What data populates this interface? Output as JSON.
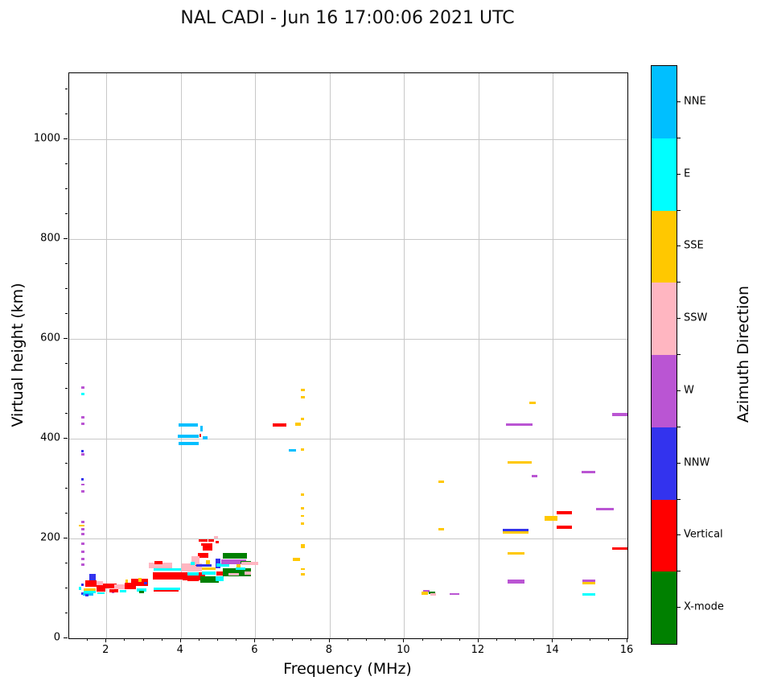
{
  "title": "NAL CADI - Jun 16 17:00:06 2021 UTC",
  "chart_data": {
    "type": "scatter",
    "title": "NAL CADI - Jun 16 17:00:06 2021 UTC",
    "xlabel": "Frequency (MHz)",
    "ylabel": "Virtual height (km)",
    "xlim": [
      1,
      16
    ],
    "ylim": [
      0,
      1132
    ],
    "x_major_ticks": [
      2,
      4,
      6,
      8,
      10,
      12,
      14,
      16
    ],
    "x_minor_step": 0.5,
    "y_major_ticks": [
      0,
      200,
      400,
      600,
      800,
      1000
    ],
    "y_minor_step": 50,
    "grid": true,
    "grid_color": "#c8c8c8",
    "colorbar": {
      "label": "Azimuth Direction",
      "categories": [
        {
          "label": "NNE",
          "color": "#00BFFF"
        },
        {
          "label": "E",
          "color": "#00FFFF"
        },
        {
          "label": "SSE",
          "color": "#FFC800"
        },
        {
          "label": "SSW",
          "color": "#FFB6C1"
        },
        {
          "label": "W",
          "color": "#BA55D3"
        },
        {
          "label": "NNW",
          "color": "#3333EE"
        },
        {
          "label": "Vertical",
          "color": "#FF0000"
        },
        {
          "label": "X-mode",
          "color": "#008000"
        }
      ]
    },
    "point_format": "[freq_MHz, virtual_height_km, width_MHz, height_km, azimuth_direction]",
    "points": [
      [
        1.37,
        503,
        0.07,
        5,
        "W"
      ],
      [
        1.37,
        489,
        0.07,
        5,
        "E"
      ],
      [
        1.37,
        442,
        0.07,
        5,
        "W"
      ],
      [
        1.37,
        430,
        0.07,
        5,
        "W"
      ],
      [
        1.36,
        375,
        0.07,
        5,
        "NNW"
      ],
      [
        1.37,
        369,
        0.07,
        5,
        "W"
      ],
      [
        1.36,
        318,
        0.07,
        5,
        "NNW"
      ],
      [
        1.37,
        308,
        0.08,
        3,
        "W"
      ],
      [
        1.37,
        295,
        0.07,
        5,
        "W"
      ],
      [
        1.37,
        233,
        0.07,
        5,
        "W"
      ],
      [
        1.33,
        225,
        0.15,
        3,
        "SSE"
      ],
      [
        1.37,
        218,
        0.07,
        5,
        "W"
      ],
      [
        1.37,
        209,
        0.07,
        5,
        "W"
      ],
      [
        1.37,
        190,
        0.07,
        5,
        "W"
      ],
      [
        1.37,
        174,
        0.07,
        5,
        "W"
      ],
      [
        1.37,
        159,
        0.07,
        5,
        "W"
      ],
      [
        1.37,
        147,
        0.07,
        5,
        "W"
      ],
      [
        1.35,
        107,
        0.07,
        5,
        "NNW"
      ],
      [
        1.3,
        100,
        0.07,
        5,
        "E"
      ],
      [
        1.35,
        89,
        0.07,
        5,
        "NNW"
      ],
      [
        1.62,
        123,
        0.18,
        13,
        "NNW"
      ],
      [
        1.58,
        110,
        0.3,
        13,
        "Vertical"
      ],
      [
        1.83,
        110,
        0.17,
        8,
        "SSW"
      ],
      [
        1.55,
        97,
        0.32,
        5,
        "SSE"
      ],
      [
        1.55,
        92,
        0.32,
        5,
        "E"
      ],
      [
        1.5,
        88,
        0.28,
        5,
        "NNE"
      ],
      [
        1.47,
        86,
        0.08,
        5,
        "NNW"
      ],
      [
        2.1,
        105,
        0.37,
        10,
        "Vertical"
      ],
      [
        1.85,
        100,
        0.24,
        14,
        "Vertical"
      ],
      [
        1.85,
        90,
        0.2,
        4,
        "E"
      ],
      [
        2.17,
        93,
        0.07,
        5,
        "W"
      ],
      [
        2.2,
        95,
        0.25,
        6,
        "Vertical"
      ],
      [
        2.35,
        103,
        0.3,
        10,
        "SSW"
      ],
      [
        2.55,
        115,
        0.07,
        6,
        "SSE"
      ],
      [
        2.65,
        105,
        0.3,
        12,
        "Vertical"
      ],
      [
        2.45,
        95,
        0.18,
        5,
        "E"
      ],
      [
        2.9,
        112,
        0.45,
        14,
        "Vertical"
      ],
      [
        2.9,
        117,
        0.07,
        7,
        "SSE"
      ],
      [
        3.05,
        110,
        0.08,
        5,
        "NNW"
      ],
      [
        2.95,
        97,
        0.26,
        6,
        "E"
      ],
      [
        2.95,
        92,
        0.14,
        5,
        "X-mode"
      ],
      [
        3.45,
        146,
        0.62,
        10,
        "SSW"
      ],
      [
        3.4,
        151,
        0.2,
        6,
        "Vertical"
      ],
      [
        3.63,
        138,
        0.73,
        6,
        "E"
      ],
      [
        3.7,
        125,
        0.9,
        16,
        "Vertical"
      ],
      [
        4.35,
        124,
        0.6,
        16,
        "Vertical"
      ],
      [
        4.3,
        142,
        0.55,
        16,
        "SSW"
      ],
      [
        3.63,
        99,
        0.72,
        5,
        "E"
      ],
      [
        3.6,
        95,
        0.68,
        4,
        "Vertical"
      ],
      [
        4.45,
        148,
        0.1,
        5,
        "Vertical"
      ],
      [
        4.6,
        196,
        0.25,
        6,
        "Vertical"
      ],
      [
        4.82,
        196,
        0.15,
        6,
        "Vertical"
      ],
      [
        4.95,
        203,
        0.1,
        5,
        "SSW"
      ],
      [
        4.97,
        193,
        0.08,
        5,
        "Vertical"
      ],
      [
        4.7,
        188,
        0.3,
        5,
        "Vertical"
      ],
      [
        4.72,
        180,
        0.25,
        10,
        "Vertical"
      ],
      [
        4.6,
        166,
        0.3,
        11,
        "Vertical"
      ],
      [
        4.4,
        155,
        0.22,
        18,
        "SSW"
      ],
      [
        4.32,
        150,
        0.12,
        6,
        "E"
      ],
      [
        4.33,
        120,
        0.3,
        10,
        "Vertical"
      ],
      [
        4.33,
        129,
        0.3,
        6,
        "E"
      ],
      [
        4.75,
        139,
        0.35,
        5,
        "SSE"
      ],
      [
        4.73,
        150,
        0.12,
        14,
        "SSE"
      ],
      [
        4.75,
        131,
        0.35,
        7,
        "E"
      ],
      [
        4.78,
        118,
        0.5,
        12,
        "X-mode"
      ],
      [
        4.62,
        146,
        0.4,
        6,
        "NNW"
      ],
      [
        5.0,
        150,
        0.12,
        18,
        "NNW"
      ],
      [
        5.05,
        119,
        0.22,
        10,
        "E"
      ],
      [
        5.12,
        147,
        0.35,
        6,
        "E"
      ],
      [
        5.1,
        130,
        0.3,
        8,
        "Vertical"
      ],
      [
        5.45,
        165,
        0.65,
        12,
        "X-mode"
      ],
      [
        5.35,
        153,
        0.32,
        10,
        "X-mode"
      ],
      [
        5.5,
        132,
        0.75,
        15,
        "X-mode"
      ],
      [
        5.42,
        153,
        0.65,
        10,
        "W"
      ],
      [
        5.42,
        128,
        0.3,
        5,
        "SSW"
      ],
      [
        5.6,
        140,
        0.25,
        5,
        "E"
      ],
      [
        5.55,
        145,
        0.12,
        6,
        "SSE"
      ],
      [
        5.75,
        153,
        0.28,
        5,
        "X-mode"
      ],
      [
        5.85,
        150,
        0.45,
        5,
        "SSW"
      ],
      [
        5.8,
        131,
        0.18,
        6,
        "SSW"
      ],
      [
        4.2,
        427,
        0.52,
        6,
        "NNE"
      ],
      [
        4.55,
        420,
        0.07,
        12,
        "NNE"
      ],
      [
        4.2,
        405,
        0.56,
        7,
        "NNE"
      ],
      [
        4.52,
        406,
        0.05,
        7,
        "Vertical"
      ],
      [
        4.65,
        401,
        0.14,
        6,
        "NNE"
      ],
      [
        4.2,
        390,
        0.54,
        7,
        "NNE"
      ],
      [
        6.65,
        427,
        0.37,
        6,
        "Vertical"
      ],
      [
        7.15,
        429,
        0.14,
        5,
        "SSE"
      ],
      [
        7.27,
        497,
        0.11,
        5,
        "SSE"
      ],
      [
        7.27,
        483,
        0.11,
        5,
        "SSE"
      ],
      [
        7.27,
        439,
        0.1,
        5,
        "SSE"
      ],
      [
        7.0,
        377,
        0.2,
        5,
        "NNE"
      ],
      [
        7.27,
        378,
        0.1,
        5,
        "SSE"
      ],
      [
        7.27,
        288,
        0.1,
        5,
        "SSE"
      ],
      [
        7.27,
        260,
        0.1,
        5,
        "SSE"
      ],
      [
        7.27,
        245,
        0.1,
        3,
        "SSE"
      ],
      [
        7.27,
        230,
        0.1,
        5,
        "SSE"
      ],
      [
        7.28,
        185,
        0.12,
        8,
        "SSE"
      ],
      [
        7.1,
        158,
        0.2,
        5,
        "SSE"
      ],
      [
        7.28,
        139,
        0.1,
        3,
        "SSE"
      ],
      [
        7.28,
        128,
        0.12,
        5,
        "SSE"
      ],
      [
        11.0,
        313,
        0.16,
        5,
        "SSE"
      ],
      [
        11.0,
        218,
        0.16,
        5,
        "SSE"
      ],
      [
        13.0,
        216,
        0.68,
        5,
        "NNW"
      ],
      [
        13.0,
        212,
        0.68,
        5,
        "SSE"
      ],
      [
        13.0,
        170,
        0.45,
        5,
        "SSE"
      ],
      [
        13.0,
        113,
        0.45,
        8,
        "W"
      ],
      [
        10.6,
        94,
        0.16,
        4,
        "W"
      ],
      [
        10.55,
        90,
        0.16,
        6,
        "SSE"
      ],
      [
        10.75,
        91,
        0.16,
        4,
        "X-mode"
      ],
      [
        10.78,
        88,
        0.14,
        4,
        "SSW"
      ],
      [
        11.35,
        89,
        0.25,
        4,
        "W"
      ],
      [
        13.1,
        353,
        0.65,
        5,
        "SSE"
      ],
      [
        13.5,
        325,
        0.14,
        5,
        "W"
      ],
      [
        13.1,
        428,
        0.72,
        5,
        "W"
      ],
      [
        13.45,
        472,
        0.16,
        4,
        "SSE"
      ],
      [
        14.95,
        333,
        0.37,
        5,
        "W"
      ],
      [
        15.4,
        259,
        0.48,
        5,
        "W"
      ],
      [
        14.3,
        251,
        0.4,
        6,
        "Vertical"
      ],
      [
        13.95,
        240,
        0.35,
        9,
        "SSE"
      ],
      [
        14.3,
        223,
        0.4,
        6,
        "Vertical"
      ],
      [
        15.8,
        180,
        0.4,
        6,
        "Vertical"
      ],
      [
        15.8,
        448,
        0.4,
        6,
        "W"
      ],
      [
        14.97,
        115,
        0.35,
        5,
        "W"
      ],
      [
        14.97,
        111,
        0.35,
        5,
        "SSE"
      ],
      [
        14.97,
        88,
        0.35,
        5,
        "E"
      ]
    ]
  }
}
